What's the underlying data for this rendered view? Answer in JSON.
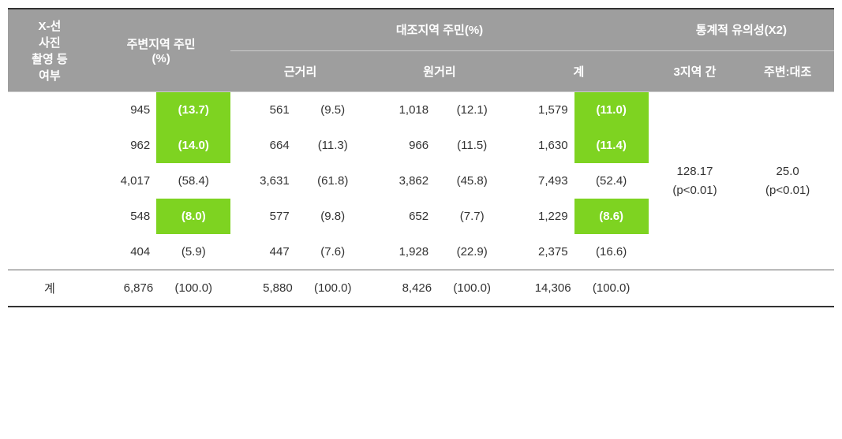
{
  "headers": {
    "col1": "X-선\n사진\n촬영 등\n여부",
    "col2": "주변지역 주민\n(%)",
    "control_group": "대조지역 주민(%)",
    "control_near": "근거리",
    "control_far": "원거리",
    "control_total": "계",
    "stat_group": "통계적 유의성(X2)",
    "stat_3regions": "3지역 간",
    "stat_surround_control": "주변:대조"
  },
  "totals_label": "계",
  "rows": [
    {
      "label": "",
      "surround_n": "945",
      "surround_pct": "(13.7)",
      "surround_hl": true,
      "near_n": "561",
      "near_pct": "(9.5)",
      "far_n": "1,018",
      "far_pct": "(12.1)",
      "total_n": "1,579",
      "total_pct": "(11.0)",
      "total_hl": true
    },
    {
      "label": "",
      "surround_n": "962",
      "surround_pct": "(14.0)",
      "surround_hl": true,
      "near_n": "664",
      "near_pct": "(11.3)",
      "far_n": "966",
      "far_pct": "(11.5)",
      "total_n": "1,630",
      "total_pct": "(11.4)",
      "total_hl": true
    },
    {
      "label": "",
      "surround_n": "4,017",
      "surround_pct": "(58.4)",
      "surround_hl": false,
      "near_n": "3,631",
      "near_pct": "(61.8)",
      "far_n": "3,862",
      "far_pct": "(45.8)",
      "total_n": "7,493",
      "total_pct": "(52.4)",
      "total_hl": false
    },
    {
      "label": "",
      "surround_n": "548",
      "surround_pct": "(8.0)",
      "surround_hl": true,
      "near_n": "577",
      "near_pct": "(9.8)",
      "far_n": "652",
      "far_pct": "(7.7)",
      "total_n": "1,229",
      "total_pct": "(8.6)",
      "total_hl": true
    },
    {
      "label": "",
      "surround_n": "404",
      "surround_pct": "(5.9)",
      "surround_hl": false,
      "near_n": "447",
      "near_pct": "(7.6)",
      "far_n": "1,928",
      "far_pct": "(22.9)",
      "total_n": "2,375",
      "total_pct": "(16.6)",
      "total_hl": false
    }
  ],
  "totals": {
    "surround_n": "6,876",
    "surround_pct": "(100.0)",
    "near_n": "5,880",
    "near_pct": "(100.0)",
    "far_n": "8,426",
    "far_pct": "(100.0)",
    "total_n": "14,306",
    "total_pct": "(100.0)"
  },
  "stats": {
    "three_regions_value": "128.17",
    "three_regions_p": "(p<0.01)",
    "surround_control_value": "25.0",
    "surround_control_p": "(p<0.01)"
  },
  "style": {
    "highlight_bg": "#7ed321",
    "highlight_text": "#ffffff",
    "header_bg": "#9e9e9e",
    "header_text": "#ffffff",
    "body_text": "#333333",
    "border": "#333333",
    "body_fontsize": 15,
    "header_fontsize": 15
  }
}
